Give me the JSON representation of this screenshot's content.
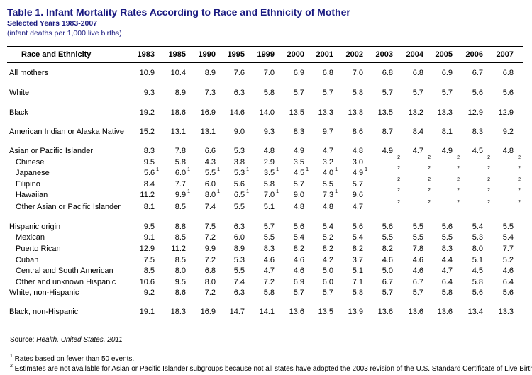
{
  "title": "Table 1.  Infant Mortality Rates According to Race and Ethnicity of Mother",
  "subtitle": "Selected Years 1983-2007",
  "unit_note": "(infant deaths per 1,000 live births)",
  "header_label": "Race and Ethnicity",
  "years": [
    "1983",
    "1985",
    "1990",
    "1995",
    "1999",
    "2000",
    "2001",
    "2002",
    "2003",
    "2004",
    "2005",
    "2006",
    "2007"
  ],
  "rows": [
    {
      "label": "All mothers",
      "values": [
        "10.9",
        "10.4",
        "8.9",
        "7.6",
        "7.0",
        "6.9",
        "6.8",
        "7.0",
        "6.8",
        "6.8",
        "6.9",
        "6.7",
        "6.8"
      ]
    },
    {
      "label": "White",
      "values": [
        "9.3",
        "8.9",
        "7.3",
        "6.3",
        "5.8",
        "5.7",
        "5.7",
        "5.8",
        "5.7",
        "5.7",
        "5.7",
        "5.6",
        "5.6"
      ]
    },
    {
      "label": "Black",
      "values": [
        "19.2",
        "18.6",
        "16.9",
        "14.6",
        "14.0",
        "13.5",
        "13.3",
        "13.8",
        "13.5",
        "13.2",
        "13.3",
        "12.9",
        "12.9"
      ]
    },
    {
      "label": "American Indian or Alaska Native",
      "values": [
        "15.2",
        "13.1",
        "13.1",
        "9.0",
        "9.3",
        "8.3",
        "9.7",
        "8.6",
        "8.7",
        "8.4",
        "8.1",
        "8.3",
        "9.2"
      ]
    },
    {
      "label": "Asian or Pacific Islander",
      "values": [
        "8.3",
        "7.8",
        "6.6",
        "5.3",
        "4.8",
        "4.9",
        "4.7",
        "4.8",
        "4.9",
        "4.7",
        "4.9",
        "4.5",
        "4.8"
      ]
    },
    {
      "label": "Chinese",
      "values": [
        "9.5",
        "5.8",
        "4.3",
        "3.8",
        "2.9",
        "3.5",
        "3.2",
        "3.0",
        "2",
        "2",
        "2",
        "2",
        "2"
      ]
    },
    {
      "label": "Japanese",
      "values": [
        "5.6",
        "6.0",
        "5.5",
        "5.3",
        "3.5",
        "4.5",
        "4.0",
        "4.9",
        "2",
        "2",
        "2",
        "2",
        "2"
      ],
      "notes": [
        "1",
        "1",
        "1",
        "1",
        "1",
        "1",
        "1",
        "1"
      ]
    },
    {
      "label": "Filipino",
      "values": [
        "8.4",
        "7.7",
        "6.0",
        "5.6",
        "5.8",
        "5.7",
        "5.5",
        "5.7",
        "2",
        "2",
        "2",
        "2",
        "2"
      ]
    },
    {
      "label": "Hawaiian",
      "values": [
        "11.2",
        "9.9",
        "8.0",
        "6.5",
        "7.0",
        "9.0",
        "7.3",
        "9.6",
        "2",
        "2",
        "2",
        "2",
        "2"
      ],
      "notes": [
        "",
        "1",
        "1",
        "1",
        "1",
        "",
        "1",
        ""
      ]
    },
    {
      "label": "Other Asian or Pacific Islander",
      "values": [
        "8.1",
        "8.5",
        "7.4",
        "5.5",
        "5.1",
        "4.8",
        "4.8",
        "4.7",
        "2",
        "2",
        "2",
        "2",
        "2"
      ]
    },
    {
      "label": "Hispanic origin",
      "values": [
        "9.5",
        "8.8",
        "7.5",
        "6.3",
        "5.7",
        "5.6",
        "5.4",
        "5.6",
        "5.6",
        "5.5",
        "5.6",
        "5.4",
        "5.5"
      ]
    },
    {
      "label": "Mexican",
      "values": [
        "9.1",
        "8.5",
        "7.2",
        "6.0",
        "5.5",
        "5.4",
        "5.2",
        "5.4",
        "5.5",
        "5.5",
        "5.5",
        "5.3",
        "5.4"
      ]
    },
    {
      "label": "Puerto Rican",
      "values": [
        "12.9",
        "11.2",
        "9.9",
        "8.9",
        "8.3",
        "8.2",
        "8.2",
        "8.2",
        "8.2",
        "7.8",
        "8.3",
        "8.0",
        "7.7"
      ]
    },
    {
      "label": "Cuban",
      "values": [
        "7.5",
        "8.5",
        "7.2",
        "5.3",
        "4.6",
        "4.6",
        "4.2",
        "3.7",
        "4.6",
        "4.6",
        "4.4",
        "5.1",
        "5.2"
      ]
    },
    {
      "label": "Central and South American",
      "values": [
        "8.5",
        "8.0",
        "6.8",
        "5.5",
        "4.7",
        "4.6",
        "5.0",
        "5.1",
        "5.0",
        "4.6",
        "4.7",
        "4.5",
        "4.6"
      ]
    },
    {
      "label": "Other and unknown Hispanic",
      "values": [
        "10.6",
        "9.5",
        "8.0",
        "7.4",
        "7.2",
        "6.9",
        "6.0",
        "7.1",
        "6.7",
        "6.7",
        "6.4",
        "5.8",
        "6.4"
      ]
    },
    {
      "label": "White, non-Hispanic",
      "values": [
        "9.2",
        "8.6",
        "7.2",
        "6.3",
        "5.8",
        "5.7",
        "5.7",
        "5.8",
        "5.7",
        "5.7",
        "5.8",
        "5.6",
        "5.6"
      ]
    },
    {
      "label": "Black, non-Hispanic",
      "values": [
        "19.1",
        "18.3",
        "16.9",
        "14.7",
        "14.1",
        "13.6",
        "13.5",
        "13.9",
        "13.6",
        "13.6",
        "13.6",
        "13.4",
        "13.3"
      ]
    }
  ],
  "source_prefix": "Source:  ",
  "source_title": "Health, United States, 2011",
  "footnote1_mark": "1",
  "footnote1": " Rates based on fewer than 50 events.",
  "footnote2_mark": "2",
  "footnote2": " Estimates are not available for Asian or Pacific Islander subgroups because not all states have adopted the 2003 revision of the U.S. Standard Certificate of Live Birth."
}
